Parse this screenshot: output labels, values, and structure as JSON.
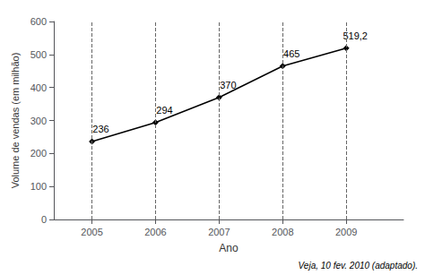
{
  "chart_data": {
    "type": "line",
    "x": [
      2005,
      2006,
      2007,
      2008,
      2009
    ],
    "values": [
      236,
      294,
      370,
      465,
      519.2
    ],
    "value_labels": [
      "236",
      "294",
      "370",
      "465",
      "519,2"
    ],
    "data_labels": true,
    "xlabel": "Ano",
    "ylabel": "Volume de vendas (em milhão)",
    "xlim": [
      2004.4,
      2009.9
    ],
    "xticks": [
      2005,
      2006,
      2007,
      2008,
      2009
    ],
    "ylim": [
      0,
      600
    ],
    "yticks": [
      0,
      100,
      200,
      300,
      400,
      500,
      600
    ],
    "grid": true,
    "color": "#000000",
    "marker": "diamond",
    "annotations": [
      "Veja, 10 fev. 2010 (adaptado)."
    ]
  }
}
